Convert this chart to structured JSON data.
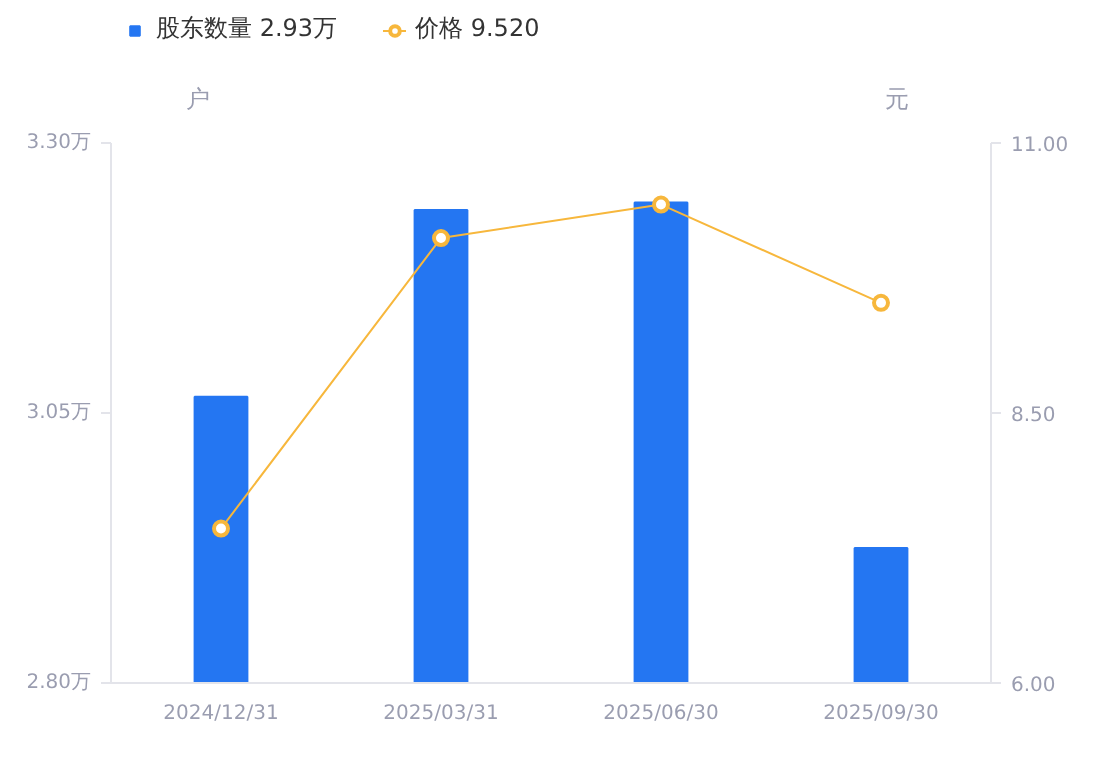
{
  "chart_data": {
    "type": "bar",
    "categories": [
      "2024/12/31",
      "2025/03/31",
      "2025/06/30",
      "2025/09/30"
    ],
    "ylabel": "户",
    "y2label": "元",
    "ylim": [
      2.8,
      3.3
    ],
    "yticks": [
      {
        "value": 2.8,
        "label": "2.80万"
      },
      {
        "value": 3.05,
        "label": "3.05万"
      },
      {
        "value": 3.3,
        "label": "3.30万"
      }
    ],
    "y2lim": [
      6,
      11
    ],
    "y2ticks": [
      {
        "value": 6,
        "label": "6.00"
      },
      {
        "value": 8.5,
        "label": "8.50"
      },
      {
        "value": 11,
        "label": "11.00"
      }
    ],
    "series": [
      {
        "name": "股东数量 2.93万",
        "color": "#2476f2",
        "values": [
          3.065,
          3.238,
          3.245,
          2.925
        ]
      },
      {
        "name": "价格 9.520",
        "type": "line",
        "axis": "y2",
        "color": "#f7b73c",
        "marker": "circle",
        "values": [
          7.43,
          10.12,
          10.43,
          9.52
        ]
      }
    ],
    "grid": false,
    "legend": "top left"
  }
}
